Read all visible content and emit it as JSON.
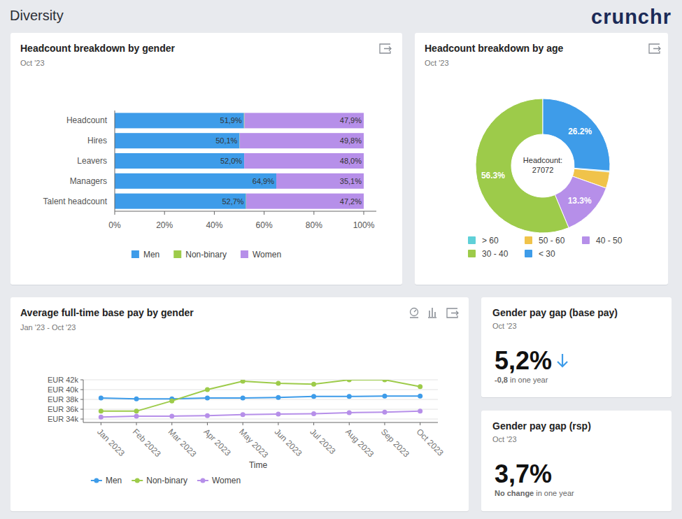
{
  "page": {
    "title": "Diversity",
    "logo": "crunchr"
  },
  "chart_data": [
    {
      "type": "bar",
      "orientation": "horizontal",
      "stacked": true,
      "title": "Headcount breakdown by gender",
      "subtitle": "Oct '23",
      "categories": [
        "Headcount",
        "Hires",
        "Leavers",
        "Managers",
        "Talent headcount"
      ],
      "series": [
        {
          "name": "Men",
          "color": "#3e9ce9",
          "values": [
            51.9,
            50.1,
            52.0,
            64.9,
            52.7
          ],
          "value_labels": [
            "51,9%",
            "50,1%",
            "52,0%",
            "64,9%",
            "52,7%"
          ]
        },
        {
          "name": "Non-binary",
          "color": "#9dcb4a",
          "values": [
            0.2,
            0.1,
            0,
            0,
            0.1
          ],
          "data_labels": false
        },
        {
          "name": "Women",
          "color": "#b68fe9",
          "values": [
            47.9,
            49.8,
            48.0,
            35.1,
            47.2
          ],
          "value_labels": [
            "47,9%",
            "49,8%",
            "48,0%",
            "35,1%",
            "47,2%"
          ]
        }
      ],
      "xlim": [
        0,
        100
      ],
      "xticks": [
        {
          "value": 0,
          "label": "0%"
        },
        {
          "value": 20,
          "label": "20%"
        },
        {
          "value": 40,
          "label": "40%"
        },
        {
          "value": 60,
          "label": "60%"
        },
        {
          "value": 80,
          "label": "80%"
        },
        {
          "value": 100,
          "label": "100%"
        }
      ],
      "data_labels": true,
      "legend": "bottom",
      "grid": false
    },
    {
      "type": "donut",
      "title": "Headcount breakdown by age",
      "subtitle": "Oct '23",
      "center_label": "Headcount:",
      "total": 27072,
      "categories": [
        "> 60",
        "50 - 60",
        "40 - 50",
        "30 - 40",
        "< 30"
      ],
      "values": [
        0.3,
        3.9,
        13.3,
        56.3,
        26.2
      ],
      "value_labels": [
        null,
        null,
        "13.3%",
        "56.3%",
        "26.2%"
      ],
      "colors": [
        "#5fd0d8",
        "#f0c34a",
        "#b68fe9",
        "#9dcb4a",
        "#3e9ce9"
      ],
      "data_labels": true,
      "legend": "bottom"
    },
    {
      "type": "line",
      "title": "Average full-time base pay by gender",
      "subtitle": "Jan '23 - Oct '23",
      "x_label": "Time",
      "categories": [
        "Jan 2023",
        "Feb 2023",
        "Mar 2023",
        "Apr 2023",
        "May 2023",
        "Jun 2023",
        "Jul 2023",
        "Aug 2023",
        "Sep 2023",
        "Oct 2023"
      ],
      "series": [
        {
          "name": "Men",
          "color": "#3e9ce9",
          "values": [
            38.3,
            38.1,
            38.1,
            38.3,
            38.3,
            38.4,
            38.6,
            38.6,
            38.7,
            38.7
          ]
        },
        {
          "name": "Non-binary",
          "color": "#9dcb4a",
          "values": [
            35.6,
            35.6,
            37.7,
            40.0,
            41.7,
            41.3,
            41.1,
            42.0,
            42.0,
            40.6
          ]
        },
        {
          "name": "Women",
          "color": "#b68fe9",
          "values": [
            34.4,
            34.6,
            34.6,
            34.7,
            34.9,
            35.0,
            35.1,
            35.3,
            35.4,
            35.6
          ]
        }
      ],
      "ylim": [
        33.3,
        42
      ],
      "yticks": [
        {
          "value": 34,
          "label": "EUR 34k"
        },
        {
          "value": 36,
          "label": "EUR 36k"
        },
        {
          "value": 38,
          "label": "EUR 38k"
        },
        {
          "value": 40,
          "label": "EUR 40k"
        },
        {
          "value": 42,
          "label": "EUR 42k"
        }
      ],
      "grid": true,
      "legend": "bottom",
      "marker": "circle",
      "line_style": "solid"
    }
  ],
  "kpis": [
    {
      "title": "Gender pay gap (base pay)",
      "subtitle": "Oct '23",
      "value": "5,2%",
      "change": "-0,8",
      "change_text": "in one year"
    },
    {
      "title": "Gender pay gap (rsp)",
      "subtitle": "Oct '23",
      "value": "3,7%",
      "change": "No change",
      "change_text": "in one year"
    }
  ]
}
